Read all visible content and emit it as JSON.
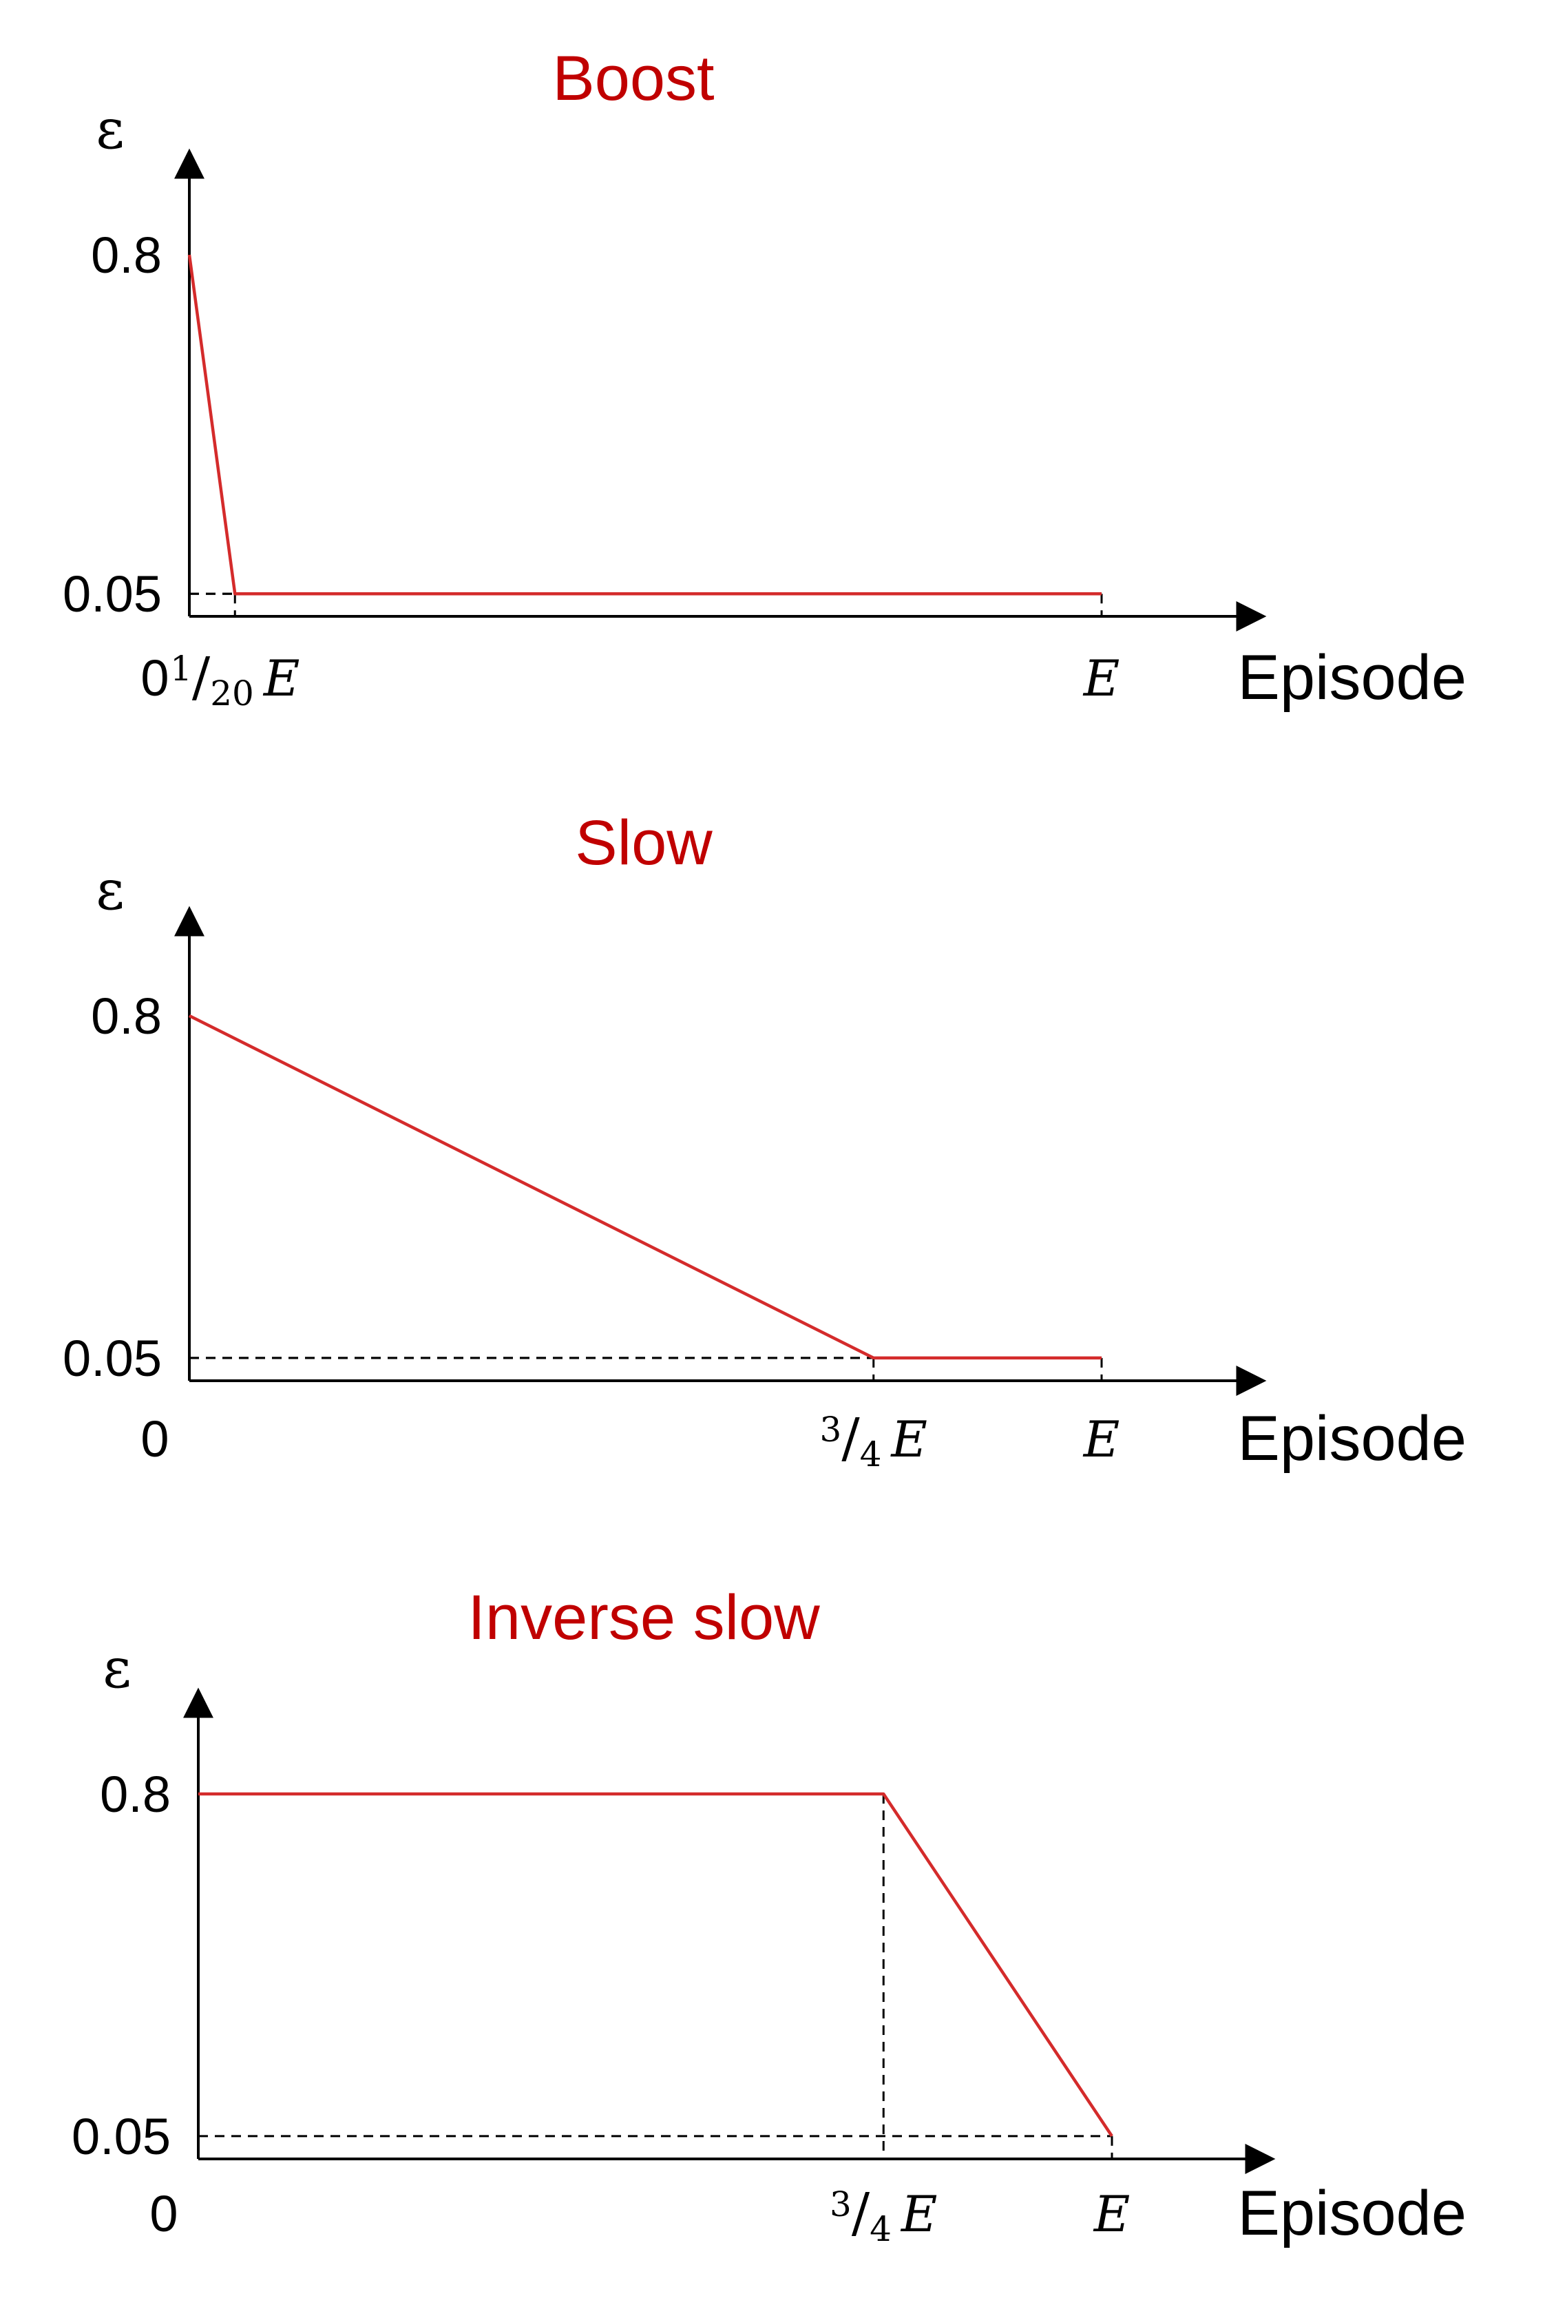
{
  "colors": {
    "curve": "#d42b2b",
    "title": "#c00000",
    "axis": "#000000"
  },
  "chart_data": [
    {
      "type": "line",
      "title": "Boost",
      "xlabel": "Episode",
      "ylabel": "ε",
      "xlim": [
        0,
        1.15
      ],
      "ylim": [
        0,
        1.0
      ],
      "x_ticks": [
        {
          "value": 0,
          "label": "0"
        },
        {
          "value": 0.05,
          "num": "1",
          "den": "20",
          "var": "E"
        },
        {
          "value": 1,
          "label": "E"
        }
      ],
      "y_ticks": [
        {
          "value": 0.05,
          "label": "0.05"
        },
        {
          "value": 0.8,
          "label": "0.8"
        }
      ],
      "guides": [
        {
          "x": 0.05,
          "y": 0.05
        },
        {
          "x": 1,
          "y": 0.05
        }
      ],
      "series": [
        {
          "x": [
            0,
            0.05,
            1
          ],
          "y": [
            0.8,
            0.05,
            0.05
          ]
        }
      ]
    },
    {
      "type": "line",
      "title": "Slow",
      "xlabel": "Episode",
      "ylabel": "ε",
      "xlim": [
        0,
        1.15
      ],
      "ylim": [
        0,
        1.0
      ],
      "x_ticks": [
        {
          "value": 0,
          "label": "0"
        },
        {
          "value": 0.75,
          "num": "3",
          "den": "4",
          "var": "E"
        },
        {
          "value": 1,
          "label": "E"
        }
      ],
      "y_ticks": [
        {
          "value": 0.05,
          "label": "0.05"
        },
        {
          "value": 0.8,
          "label": "0.8"
        }
      ],
      "guides": [
        {
          "x": 0.75,
          "y": 0.05
        },
        {
          "x": 1,
          "y": 0.05
        }
      ],
      "series": [
        {
          "x": [
            0,
            0.75,
            1
          ],
          "y": [
            0.8,
            0.05,
            0.05
          ]
        }
      ]
    },
    {
      "type": "line",
      "title": "Inverse slow",
      "xlabel": "Episode",
      "ylabel": "ε",
      "xlim": [
        0,
        1.15
      ],
      "ylim": [
        0,
        1.0
      ],
      "x_ticks": [
        {
          "value": 0,
          "label": "0"
        },
        {
          "value": 0.75,
          "num": "3",
          "den": "4",
          "var": "E"
        },
        {
          "value": 1,
          "label": "E"
        }
      ],
      "y_ticks": [
        {
          "value": 0.05,
          "label": "0.05"
        },
        {
          "value": 0.8,
          "label": "0.8"
        }
      ],
      "guides": [
        {
          "x": 0.75,
          "y": 0.8
        },
        {
          "x": 1,
          "y": 0.05
        }
      ],
      "series": [
        {
          "x": [
            0,
            0.75,
            1
          ],
          "y": [
            0.8,
            0.8,
            0.05
          ]
        }
      ]
    }
  ]
}
